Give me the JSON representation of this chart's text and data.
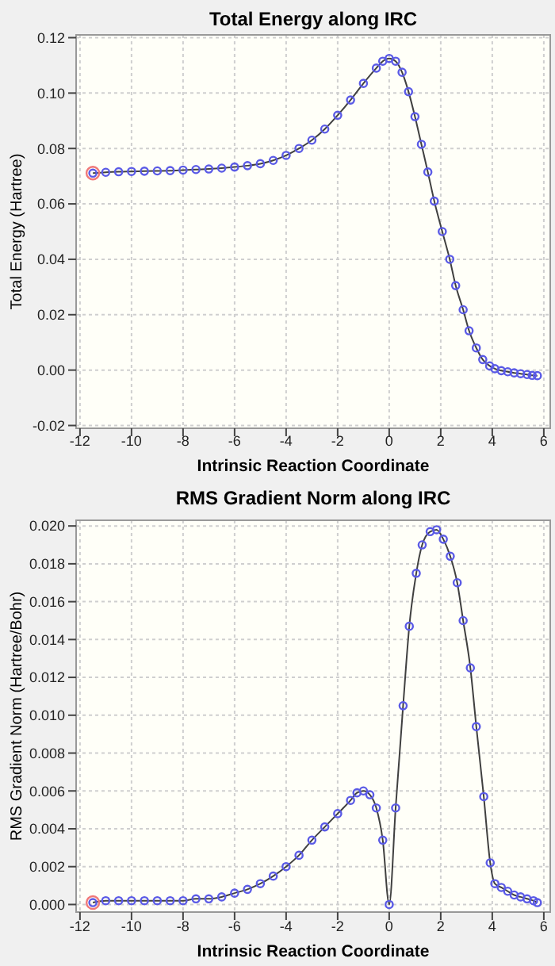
{
  "chart_data": [
    {
      "type": "line",
      "title": "Total Energy along IRC",
      "xlabel": "Intrinsic Reaction Coordinate",
      "ylabel": "Total Energy (Hartree)",
      "xlim": [
        -12.15,
        6.25
      ],
      "ylim": [
        -0.021,
        0.121
      ],
      "xticks": [
        -12,
        -10,
        -8,
        -6,
        -4,
        -2,
        0,
        2,
        4,
        6
      ],
      "yticks": [
        {
          "value": -0.02,
          "label": "-0.02"
        },
        {
          "value": 0,
          "label": "0.00"
        },
        {
          "value": 0.02,
          "label": "0.02"
        },
        {
          "value": 0.04,
          "label": "0.04"
        },
        {
          "value": 0.06,
          "label": "0.06"
        },
        {
          "value": 0.08,
          "label": "0.08"
        },
        {
          "value": 0.1,
          "label": "0.10"
        },
        {
          "value": 0.12,
          "label": "0.12"
        }
      ],
      "grid": true,
      "series": [
        {
          "type": "line",
          "marker": "circle",
          "color": "#5a5ae6",
          "x": [
            -11.5,
            -11,
            -10.5,
            -10,
            -9.5,
            -9,
            -8.5,
            -8,
            -7.5,
            -7,
            -6.5,
            -6,
            -5.5,
            -5,
            -4.5,
            -4,
            -3.5,
            -3,
            -2.5,
            -2,
            -1.5,
            -1,
            -0.5,
            -0.25,
            0,
            0.25,
            0.5,
            0.75,
            1,
            1.25,
            1.5,
            1.75,
            2.06,
            2.35,
            2.58,
            2.87,
            3.1,
            3.38,
            3.63,
            3.9,
            4.1,
            4.35,
            4.6,
            4.85,
            5.1,
            5.35,
            5.55,
            5.75
          ],
          "values": [
            0.0711,
            0.0714,
            0.0716,
            0.0717,
            0.0718,
            0.0719,
            0.072,
            0.0722,
            0.0724,
            0.0726,
            0.0729,
            0.0733,
            0.0738,
            0.0745,
            0.0757,
            0.0775,
            0.08,
            0.083,
            0.087,
            0.092,
            0.0975,
            0.1035,
            0.109,
            0.1115,
            0.1125,
            0.1115,
            0.1075,
            0.1005,
            0.0915,
            0.0815,
            0.0715,
            0.061,
            0.05,
            0.04,
            0.0305,
            0.0218,
            0.0142,
            0.008,
            0.0038,
            0.0015,
            0.0005,
            -0.0002,
            -0.0006,
            -0.001,
            -0.0013,
            -0.0016,
            -0.0019,
            -0.002
          ]
        },
        {
          "type": "scatter",
          "marker": "circle",
          "color": "#f07878",
          "x": [
            -11.5
          ],
          "values": [
            0.0711
          ]
        }
      ]
    },
    {
      "type": "line",
      "title": "RMS Gradient Norm along IRC",
      "xlabel": "Intrinsic Reaction Coordinate",
      "ylabel": "RMS Gradient Norm (Hartree/Bohr)",
      "xlim": [
        -12.15,
        6.25
      ],
      "ylim": [
        -0.0004,
        0.0203
      ],
      "xticks": [
        -12,
        -10,
        -8,
        -6,
        -4,
        -2,
        0,
        2,
        4,
        6
      ],
      "yticks": [
        {
          "value": 0,
          "label": "0.000"
        },
        {
          "value": 0.002,
          "label": "0.002"
        },
        {
          "value": 0.004,
          "label": "0.004"
        },
        {
          "value": 0.006,
          "label": "0.006"
        },
        {
          "value": 0.008,
          "label": "0.008"
        },
        {
          "value": 0.01,
          "label": "0.010"
        },
        {
          "value": 0.012,
          "label": "0.012"
        },
        {
          "value": 0.014,
          "label": "0.014"
        },
        {
          "value": 0.016,
          "label": "0.016"
        },
        {
          "value": 0.018,
          "label": "0.018"
        },
        {
          "value": 0.02,
          "label": "0.020"
        }
      ],
      "grid": true,
      "series": [
        {
          "type": "line",
          "marker": "circle",
          "color": "#5a5ae6",
          "x": [
            -11.5,
            -11,
            -10.5,
            -10,
            -9.5,
            -9,
            -8.5,
            -8,
            -7.5,
            -7,
            -6.5,
            -6,
            -5.5,
            -5,
            -4.5,
            -4,
            -3.5,
            -3,
            -2.5,
            -2,
            -1.5,
            -1.25,
            -1,
            -0.75,
            -0.5,
            -0.25,
            0,
            0.25,
            0.54,
            0.78,
            1.05,
            1.28,
            1.59,
            1.84,
            2.1,
            2.37,
            2.64,
            2.87,
            3.15,
            3.38,
            3.67,
            3.92,
            4.1,
            4.35,
            4.6,
            4.85,
            5.1,
            5.35,
            5.6,
            5.75
          ],
          "values": [
            0.0001,
            0.0002,
            0.0002,
            0.0002,
            0.0002,
            0.0002,
            0.0002,
            0.0002,
            0.0003,
            0.0003,
            0.0004,
            0.0006,
            0.0008,
            0.0011,
            0.0015,
            0.002,
            0.0026,
            0.0034,
            0.0041,
            0.0048,
            0.0055,
            0.0059,
            0.006,
            0.0058,
            0.0051,
            0.0034,
            0,
            0.0051,
            0.0105,
            0.0147,
            0.0175,
            0.019,
            0.0197,
            0.0198,
            0.0193,
            0.0184,
            0.017,
            0.015,
            0.0125,
            0.0094,
            0.0057,
            0.0022,
            0.0011,
            0.0009,
            0.0007,
            0.0005,
            0.0004,
            0.0003,
            0.0002,
            0.0001
          ]
        },
        {
          "type": "scatter",
          "marker": "circle",
          "color": "#f07878",
          "x": [
            -11.5
          ],
          "values": [
            0.0001
          ]
        }
      ]
    }
  ]
}
